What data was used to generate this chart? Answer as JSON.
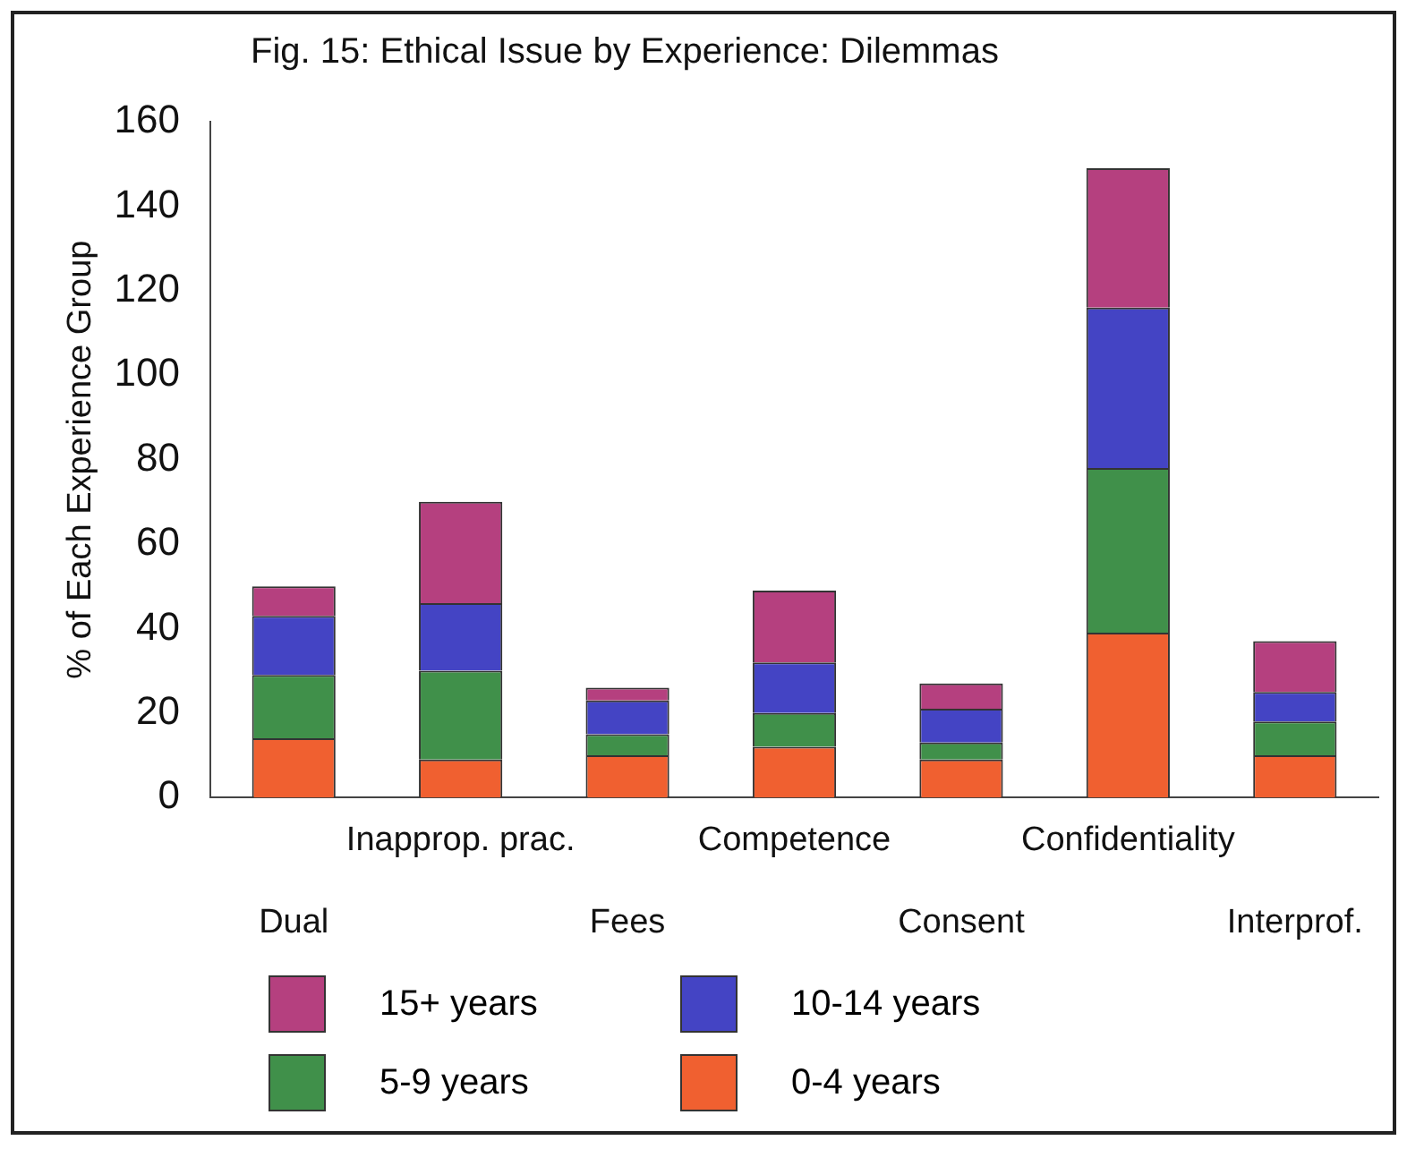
{
  "chart_data": {
    "type": "bar",
    "title": "Fig. 15: Ethical Issue by Experience: Dilemmas",
    "ylabel": "% of Each Experience Group",
    "categories": [
      "Dual",
      "Inapprop. prac.",
      "Fees",
      "Competence",
      "Consent",
      "Confidentiality",
      "Interprof."
    ],
    "stacked": true,
    "legend": "bottom",
    "grid": false,
    "ylim": [
      0,
      160
    ],
    "yticks": [
      0,
      20,
      40,
      60,
      80,
      100,
      120,
      140,
      160
    ],
    "series": [
      {
        "name": "0-4 years",
        "color": "#f06030",
        "values": [
          14,
          9,
          10,
          12,
          9,
          39,
          10
        ]
      },
      {
        "name": "5-9 years",
        "color": "#40904a",
        "values": [
          15,
          21,
          5,
          8,
          4,
          39,
          8
        ]
      },
      {
        "name": "10-14 years",
        "color": "#4444c4",
        "values": [
          14,
          16,
          8,
          12,
          8,
          38,
          7
        ]
      },
      {
        "name": "15+ years",
        "color": "#b5407f",
        "values": [
          7,
          24,
          3,
          17,
          6,
          33,
          12
        ]
      }
    ]
  }
}
